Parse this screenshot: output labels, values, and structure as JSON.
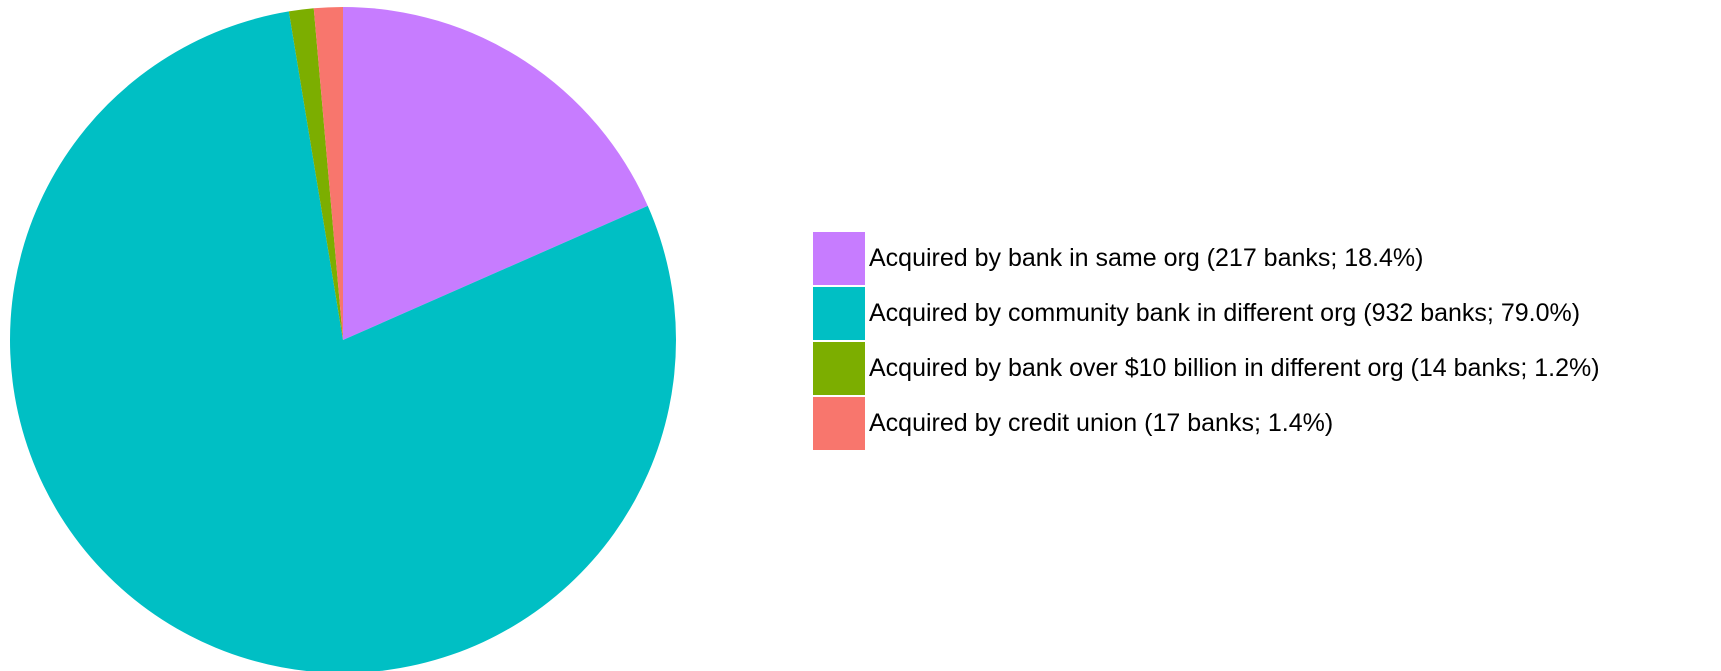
{
  "chart_data": {
    "type": "pie",
    "categories": [
      "Acquired by bank in same org (217 banks; 18.4%)",
      "Acquired by community bank in different org (932 banks; 79.0%)",
      "Acquired by bank over $10 billion in different org (14 banks; 1.2%)",
      "Acquired by credit union (17 banks; 1.4%)"
    ],
    "values": [
      18.4,
      79.0,
      1.2,
      1.4
    ],
    "colors": [
      "#C77CFF",
      "#00BFC4",
      "#7CAE00",
      "#F8766D"
    ],
    "legend": "right"
  }
}
